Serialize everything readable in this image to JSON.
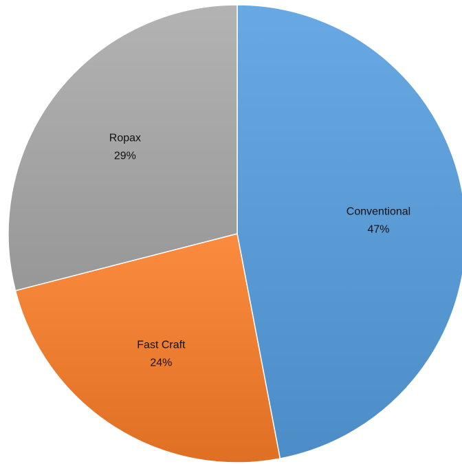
{
  "chart_data": {
    "type": "pie",
    "title": "",
    "start_angle_deg": -90,
    "direction": "clockwise",
    "series": [
      {
        "values": [
          {
            "label": "Conventional",
            "value": 47,
            "display": "47%",
            "color": "#5b9bd5"
          },
          {
            "label": "Fast Craft",
            "value": 24,
            "display": "24%",
            "color": "#ed7d31"
          },
          {
            "label": "Ropax",
            "value": 29,
            "display": "29%",
            "color": "#a5a5a5"
          }
        ]
      }
    ],
    "legend": "none",
    "data_labels": "inside"
  }
}
